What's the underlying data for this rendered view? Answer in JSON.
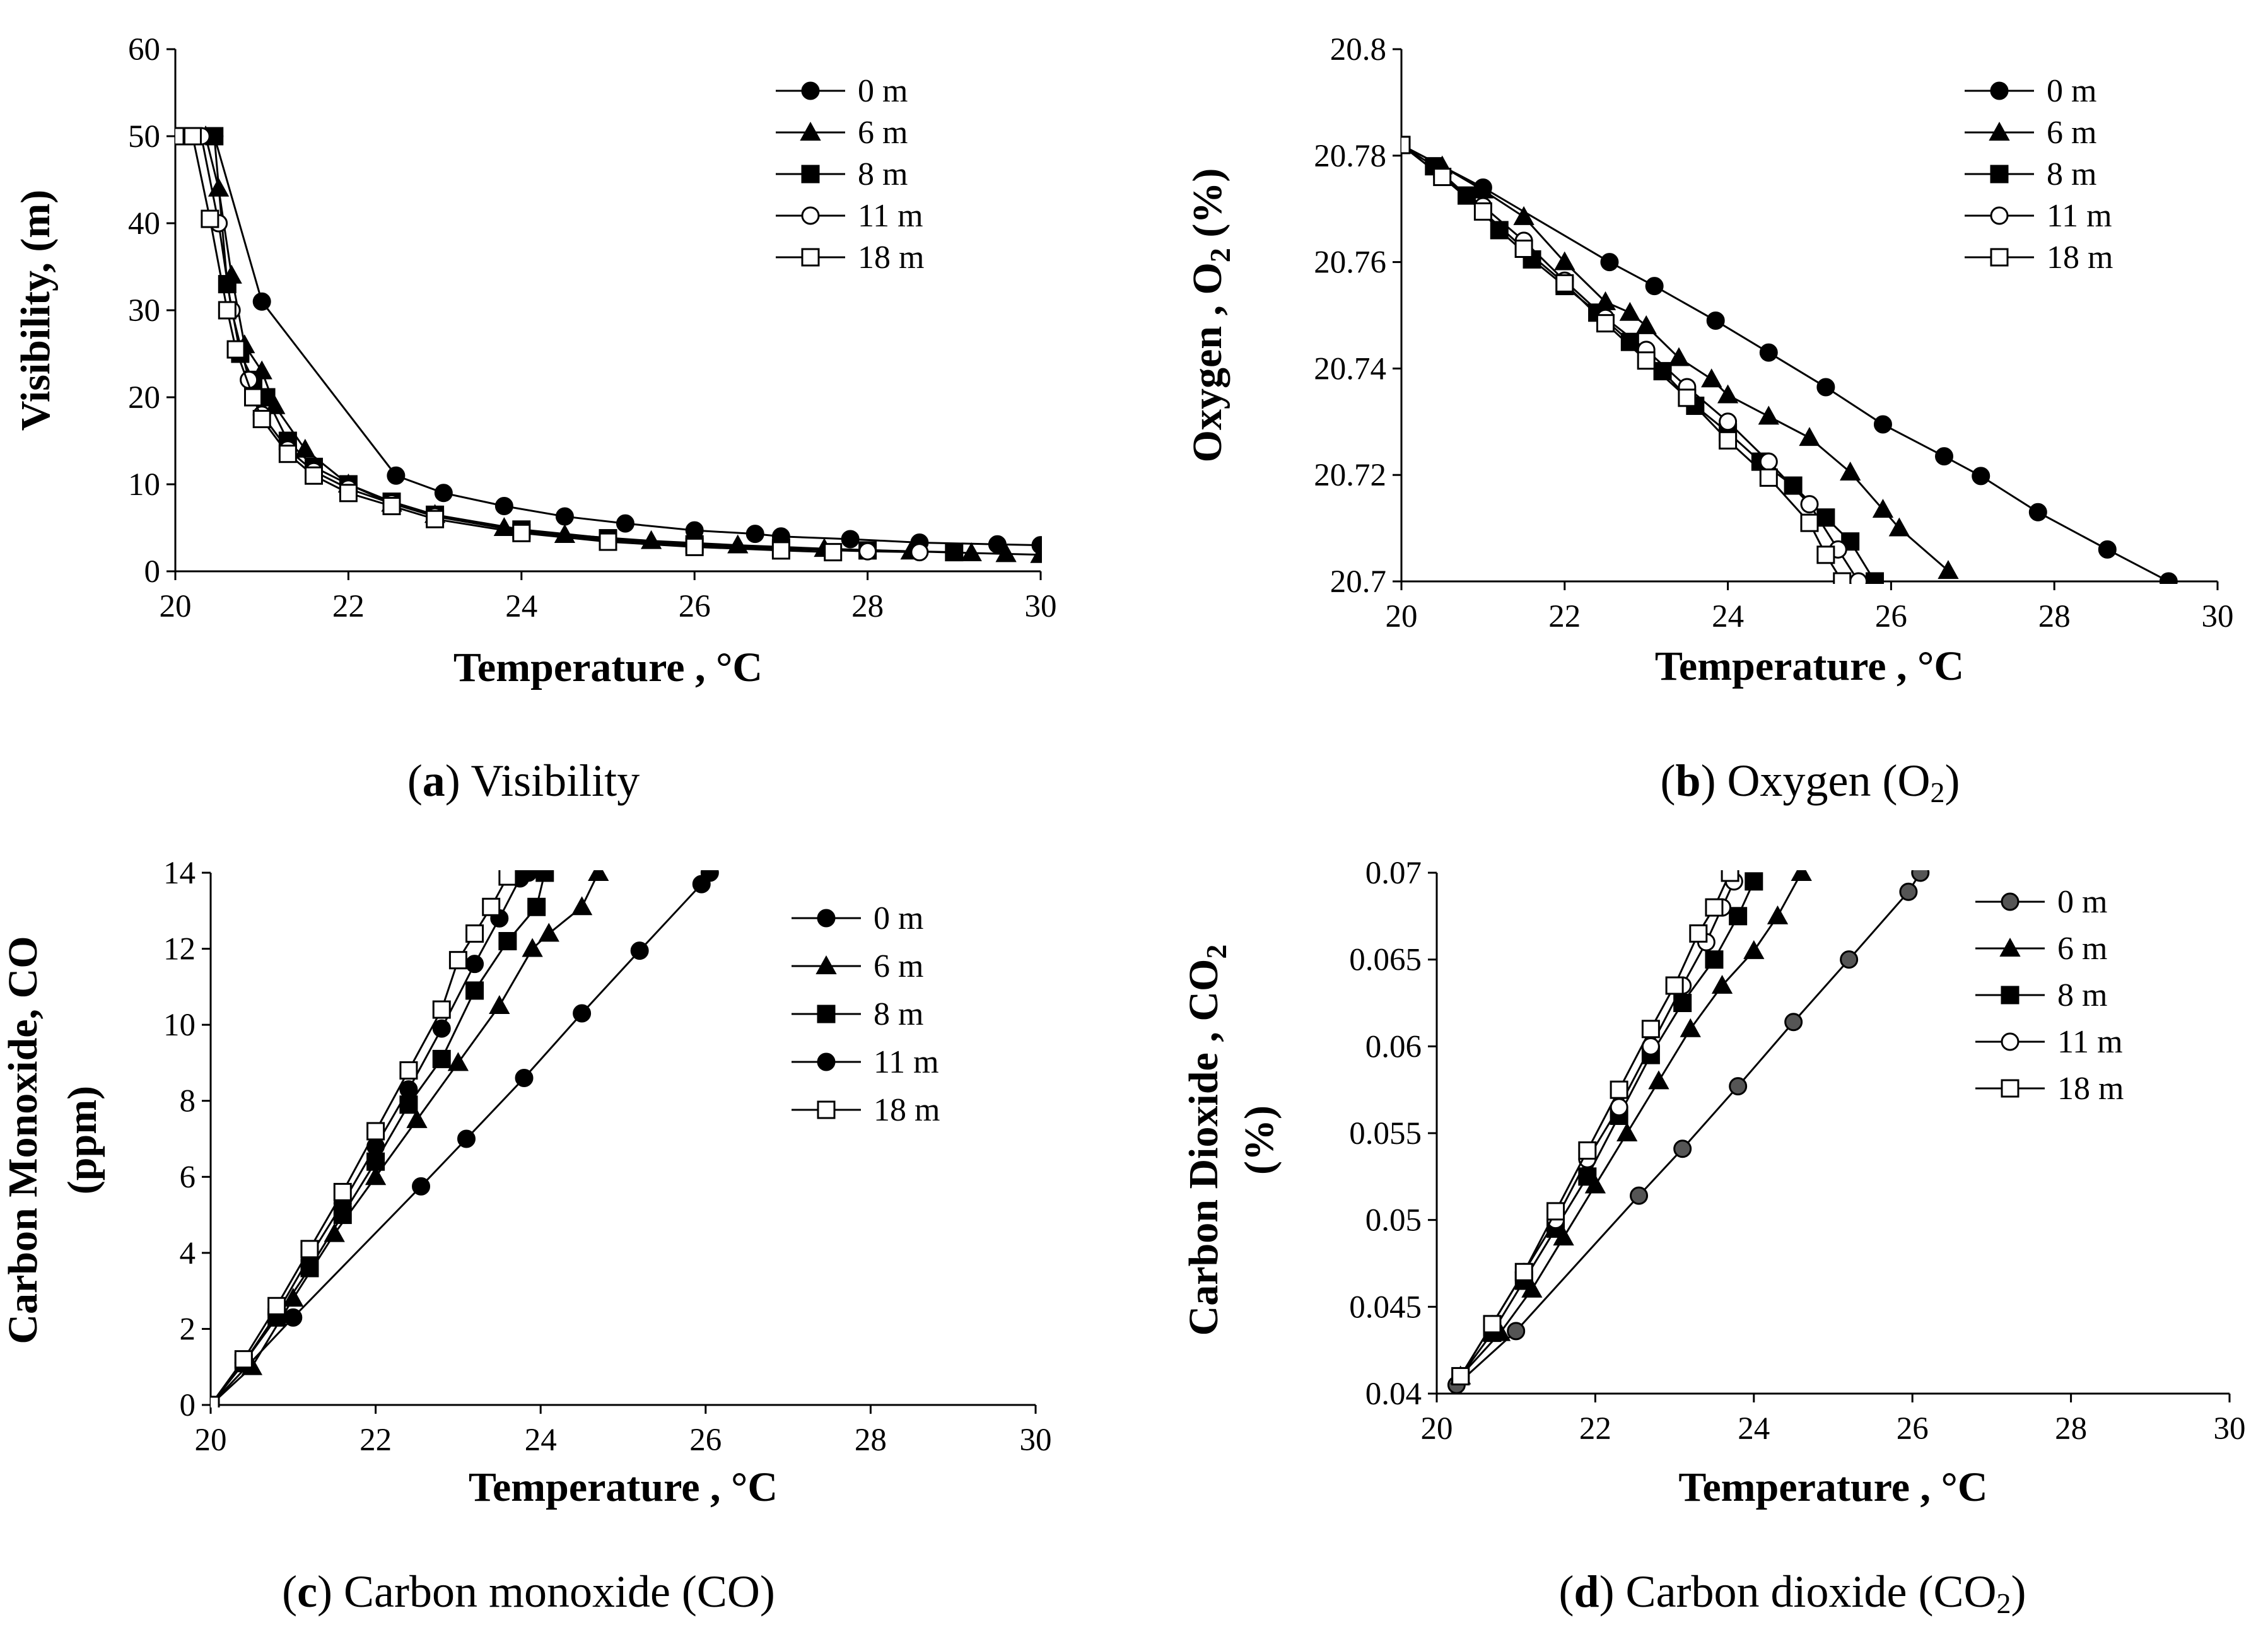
{
  "chart_data": [
    {
      "id": "a",
      "type": "line",
      "caption": {
        "letter": "a",
        "text": "Visibility"
      },
      "xlabel": "Temperature , °C",
      "ylabel": "Visibility, (m)",
      "xlim": [
        20,
        30
      ],
      "ylim": [
        0,
        60
      ],
      "xticks": [
        "20",
        "22",
        "24",
        "26",
        "28",
        "30"
      ],
      "yticks": [
        "0",
        "10",
        "20",
        "30",
        "40",
        "50",
        "60"
      ],
      "legend_position": "top-right",
      "series": [
        {
          "name": "0 m",
          "marker": "filled-circle",
          "x": [
            20.0,
            20.45,
            21.0,
            22.55,
            23.1,
            23.8,
            24.5,
            25.2,
            26.0,
            26.7,
            27.0,
            27.8,
            28.6,
            29.5,
            30.0
          ],
          "y": [
            50,
            50,
            31,
            11,
            9,
            7.5,
            6.3,
            5.5,
            4.7,
            4.3,
            4.0,
            3.7,
            3.3,
            3.1,
            3.0
          ]
        },
        {
          "name": "6 m",
          "marker": "filled-triangle",
          "x": [
            20.0,
            20.35,
            20.5,
            20.65,
            20.8,
            21.0,
            21.15,
            21.5,
            22.0,
            22.5,
            23.0,
            23.8,
            24.5,
            25.5,
            26.5,
            27.5,
            28.5,
            29.2,
            29.6,
            30.0
          ],
          "y": [
            50,
            50,
            44,
            34,
            26,
            23,
            19,
            14,
            10,
            7.8,
            6.5,
            5.0,
            4.2,
            3.5,
            3.0,
            2.6,
            2.3,
            2.1,
            2.0,
            1.9
          ]
        },
        {
          "name": "8 m",
          "marker": "filled-square",
          "x": [
            20.0,
            20.45,
            20.6,
            20.75,
            20.9,
            21.05,
            21.3,
            21.6,
            22.0,
            22.5,
            23.0,
            24.0,
            25.0,
            26.0,
            27.0,
            28.0,
            29.0
          ],
          "y": [
            50,
            50,
            33,
            25,
            22,
            20,
            15,
            12,
            10,
            8,
            6.5,
            4.8,
            3.8,
            3.1,
            2.7,
            2.4,
            2.2
          ]
        },
        {
          "name": "11 m",
          "marker": "open-circle",
          "x": [
            20.0,
            20.3,
            20.5,
            20.65,
            20.85,
            21.0,
            21.3,
            21.6,
            22.0,
            22.5,
            23.0,
            24.0,
            25.0,
            26.0,
            27.0,
            28.0,
            28.6
          ],
          "y": [
            50,
            50,
            40,
            30,
            22,
            18,
            14,
            11.5,
            9.5,
            7.8,
            6.3,
            4.6,
            3.6,
            3.0,
            2.6,
            2.3,
            2.2
          ]
        },
        {
          "name": "18 m",
          "marker": "open-square",
          "x": [
            20.0,
            20.2,
            20.4,
            20.6,
            20.7,
            20.9,
            21.0,
            21.3,
            21.6,
            22.0,
            22.5,
            23.0,
            24.0,
            25.0,
            26.0,
            27.0,
            27.6
          ],
          "y": [
            50,
            50,
            40.5,
            30,
            25.5,
            20,
            17.5,
            13.5,
            11,
            9,
            7.5,
            6,
            4.4,
            3.4,
            2.8,
            2.4,
            2.2
          ]
        }
      ]
    },
    {
      "id": "b",
      "type": "line",
      "caption": {
        "letter": "b",
        "text": "Oxygen (O",
        "sub": "2",
        "after": ")"
      },
      "xlabel": "Temperature , °C",
      "ylabel": "Oxygen , O",
      "ylabel_sub": "2",
      "ylabel_after": " (%)",
      "xlim": [
        20,
        30
      ],
      "ylim": [
        20.7,
        20.8
      ],
      "xticks": [
        "20",
        "22",
        "24",
        "26",
        "28",
        "30"
      ],
      "yticks": [
        "20.7",
        "20.72",
        "20.74",
        "20.76",
        "20.78",
        "20.8"
      ],
      "legend_position": "top-right",
      "series": [
        {
          "name": "0 m",
          "marker": "filled-circle",
          "x": [
            20.0,
            21.0,
            22.55,
            23.1,
            23.85,
            24.5,
            25.2,
            25.9,
            26.65,
            27.1,
            27.8,
            28.65,
            29.4
          ],
          "y": [
            20.782,
            20.774,
            20.76,
            20.7555,
            20.749,
            20.743,
            20.7365,
            20.7295,
            20.7235,
            20.7198,
            20.713,
            20.706,
            20.7
          ]
        },
        {
          "name": "6 m",
          "marker": "filled-triangle",
          "x": [
            20.0,
            20.5,
            21.0,
            21.5,
            22.0,
            22.5,
            22.8,
            23.0,
            23.4,
            23.8,
            24.0,
            24.5,
            25.0,
            25.5,
            25.9,
            26.1,
            26.7
          ],
          "y": [
            20.782,
            20.778,
            20.7735,
            20.7685,
            20.76,
            20.7525,
            20.7505,
            20.748,
            20.742,
            20.738,
            20.735,
            20.731,
            20.727,
            20.7205,
            20.7135,
            20.71,
            20.702
          ]
        },
        {
          "name": "8 m",
          "marker": "filled-square",
          "x": [
            20.0,
            20.4,
            20.8,
            21.2,
            21.6,
            22.0,
            22.4,
            22.8,
            23.2,
            23.6,
            24.0,
            24.4,
            24.8,
            25.2,
            25.5,
            25.8
          ],
          "y": [
            20.782,
            20.778,
            20.7725,
            20.766,
            20.7605,
            20.7555,
            20.7505,
            20.745,
            20.7395,
            20.733,
            20.728,
            20.7225,
            20.718,
            20.712,
            20.7075,
            20.7
          ]
        },
        {
          "name": "11 m",
          "marker": "open-circle",
          "x": [
            20.0,
            20.5,
            21.0,
            21.5,
            22.0,
            22.5,
            23.0,
            23.5,
            24.0,
            24.5,
            25.0,
            25.35,
            25.6
          ],
          "y": [
            20.782,
            20.776,
            20.7705,
            20.764,
            20.7565,
            20.7495,
            20.7435,
            20.7365,
            20.73,
            20.7225,
            20.7145,
            20.706,
            20.7
          ]
        },
        {
          "name": "18 m",
          "marker": "open-square",
          "x": [
            20.0,
            20.5,
            21.0,
            21.5,
            22.0,
            22.5,
            23.0,
            23.5,
            24.0,
            24.5,
            25.0,
            25.2,
            25.4
          ],
          "y": [
            20.782,
            20.776,
            20.7695,
            20.7625,
            20.756,
            20.7485,
            20.7415,
            20.7345,
            20.7265,
            20.7195,
            20.711,
            20.705,
            20.7
          ]
        }
      ]
    },
    {
      "id": "c",
      "type": "line",
      "caption": {
        "letter": "c",
        "text": "Carbon monoxide (CO)"
      },
      "xlabel": "Temperature , °C",
      "ylabel": "Carbon Monoxide, CO",
      "ylabel2": "(ppm)",
      "xlim": [
        20,
        30
      ],
      "ylim": [
        0,
        14
      ],
      "xticks": [
        "20",
        "22",
        "24",
        "26",
        "28",
        "30"
      ],
      "yticks": [
        "0",
        "2",
        "4",
        "6",
        "8",
        "10",
        "12",
        "14"
      ],
      "legend_position": "top-right",
      "series": [
        {
          "name": "0 m",
          "marker": "filled-circle",
          "x": [
            20.0,
            21.0,
            22.55,
            23.1,
            23.8,
            24.5,
            25.2,
            25.95,
            26.05
          ],
          "y": [
            0,
            2.3,
            5.75,
            7.0,
            8.6,
            10.3,
            11.95,
            13.7,
            14.0
          ]
        },
        {
          "name": "6 m",
          "marker": "filled-triangle",
          "x": [
            20.0,
            20.5,
            21.0,
            21.5,
            22.0,
            22.5,
            23.0,
            23.5,
            23.9,
            24.1,
            24.5,
            24.7
          ],
          "y": [
            0,
            1.0,
            2.8,
            4.5,
            6.0,
            7.5,
            9.0,
            10.5,
            12.0,
            12.4,
            13.1,
            14.0
          ]
        },
        {
          "name": "8 m",
          "marker": "filled-square",
          "x": [
            20.0,
            20.4,
            20.8,
            21.2,
            21.6,
            22.0,
            22.4,
            22.8,
            23.2,
            23.6,
            23.95,
            24.05
          ],
          "y": [
            0,
            1.1,
            2.3,
            3.6,
            5.0,
            6.4,
            7.9,
            9.1,
            10.9,
            12.2,
            13.1,
            14.0
          ]
        },
        {
          "name": "11 m",
          "marker": "filled-circle",
          "x": [
            20.0,
            20.4,
            20.8,
            21.2,
            21.6,
            22.0,
            22.4,
            22.8,
            23.2,
            23.5,
            23.75,
            23.85
          ],
          "y": [
            0,
            1.1,
            2.4,
            3.9,
            5.3,
            6.8,
            8.3,
            9.9,
            11.6,
            12.8,
            13.85,
            14.0
          ]
        },
        {
          "name": "18 m",
          "marker": "open-square",
          "x": [
            20.0,
            20.4,
            20.8,
            21.2,
            21.6,
            22.0,
            22.4,
            22.8,
            23.0,
            23.2,
            23.4,
            23.6
          ],
          "y": [
            0,
            1.2,
            2.6,
            4.1,
            5.6,
            7.2,
            8.8,
            10.4,
            11.7,
            12.4,
            13.1,
            13.9
          ]
        }
      ]
    },
    {
      "id": "d",
      "type": "line",
      "caption": {
        "letter": "d",
        "text": "Carbon dioxide (CO",
        "sub": "2",
        "after": ")"
      },
      "xlabel": "Temperature , °C",
      "ylabel": "Carbon Dioxide , CO",
      "ylabel_sub": "2",
      "ylabel2": "(%)",
      "xlim": [
        20,
        30
      ],
      "ylim": [
        0.04,
        0.07
      ],
      "xticks": [
        "20",
        "22",
        "24",
        "26",
        "28",
        "30"
      ],
      "yticks": [
        "0.04",
        "0.045",
        "0.05",
        "0.055",
        "0.06",
        "0.065",
        "0.07"
      ],
      "legend_position": "top-right",
      "series": [
        {
          "name": "0 m",
          "marker": "filled-circle-grey",
          "x": [
            20.25,
            21.0,
            22.55,
            23.1,
            23.8,
            24.5,
            25.2,
            25.95,
            26.1
          ],
          "y": [
            0.0405,
            0.0436,
            0.0514,
            0.0541,
            0.0577,
            0.0614,
            0.065,
            0.0689,
            0.07
          ]
        },
        {
          "name": "6 m",
          "marker": "filled-triangle",
          "x": [
            20.3,
            20.8,
            21.2,
            21.6,
            22.0,
            22.4,
            22.8,
            23.2,
            23.6,
            24.0,
            24.3,
            24.6
          ],
          "y": [
            0.041,
            0.0435,
            0.046,
            0.049,
            0.052,
            0.055,
            0.058,
            0.061,
            0.0635,
            0.0655,
            0.0675,
            0.07
          ]
        },
        {
          "name": "8 m",
          "marker": "filled-square",
          "x": [
            20.3,
            20.7,
            21.1,
            21.5,
            21.9,
            22.3,
            22.7,
            23.1,
            23.5,
            23.8,
            24.0
          ],
          "y": [
            0.041,
            0.0435,
            0.0465,
            0.0495,
            0.0525,
            0.056,
            0.0595,
            0.0625,
            0.065,
            0.0675,
            0.0695
          ]
        },
        {
          "name": "11 m",
          "marker": "open-circle",
          "x": [
            20.3,
            20.7,
            21.1,
            21.5,
            21.9,
            22.3,
            22.7,
            23.1,
            23.4,
            23.6,
            23.75
          ],
          "y": [
            0.041,
            0.044,
            0.047,
            0.05,
            0.0535,
            0.0565,
            0.06,
            0.0635,
            0.066,
            0.068,
            0.0695
          ]
        },
        {
          "name": "18 m",
          "marker": "open-square",
          "x": [
            20.3,
            20.7,
            21.1,
            21.5,
            21.9,
            22.3,
            22.7,
            23.0,
            23.3,
            23.5,
            23.7
          ],
          "y": [
            0.041,
            0.044,
            0.047,
            0.0505,
            0.054,
            0.0575,
            0.061,
            0.0635,
            0.0665,
            0.068,
            0.07
          ]
        }
      ]
    }
  ]
}
